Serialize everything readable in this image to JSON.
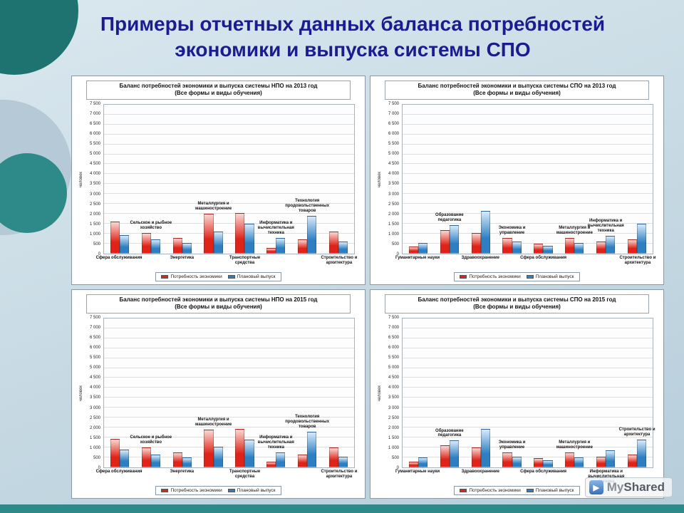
{
  "slide": {
    "title_line1": "Примеры отчетных данных баланса потребностей",
    "title_line2": "экономики и выпуска системы СПО",
    "title_color": "#1c1c8e",
    "accent_teal": "#2d8a88"
  },
  "watermark": {
    "part1": "My",
    "part2": "Shared"
  },
  "chart_data": [
    {
      "type": "bar",
      "title": "Баланс потребностей экономики и выпуска системы НПО на 2013 год",
      "subtitle": "(Все формы и виды обучения)",
      "ylabel": "человек",
      "ylim": [
        0,
        7500
      ],
      "ytick_step": 500,
      "grid": true,
      "legend_position": "bottom",
      "categories": [
        "Сфера обслуживания",
        "Сельское и рыбное хозяйство",
        "Энергетика",
        "Металлургия и машиностроение",
        "Транспортные средства",
        "Информатика и вычислительная техника",
        "Технология продовольственных товаров",
        "Строительство и архитектура"
      ],
      "label_position": [
        "axis",
        "inplot",
        "axis",
        "inplot",
        "axis",
        "inplot",
        "inplot",
        "axis"
      ],
      "series": [
        {
          "name": "Потребность экономики",
          "color": "#df2318",
          "color_light": "#fbd7d2",
          "values": [
            1600,
            1050,
            800,
            2000,
            2050,
            300,
            700,
            1100
          ]
        },
        {
          "name": "Плановый выпуск",
          "color": "#2e7fc2",
          "color_light": "#d6eafb",
          "values": [
            950,
            700,
            550,
            1100,
            1500,
            800,
            1900,
            600
          ]
        }
      ]
    },
    {
      "type": "bar",
      "title": "Баланс потребностей экономики и выпуска системы СПО на 2013 год",
      "subtitle": "(Все формы и виды обучения)",
      "ylabel": "человек",
      "ylim": [
        0,
        7500
      ],
      "ytick_step": 500,
      "grid": true,
      "legend_position": "bottom",
      "categories": [
        "Гуманитарные науки",
        "Образование педагогика",
        "Здравоохранение",
        "Экономика и управление",
        "Сфера обслуживания",
        "Металлургия и машиностроение",
        "Информатика и вычислительная техника",
        "Строительство и архитектура"
      ],
      "label_position": [
        "axis",
        "inplot",
        "axis",
        "inplot",
        "axis",
        "inplot",
        "inplot",
        "axis"
      ],
      "series": [
        {
          "name": "Потребность экономики",
          "color": "#df2318",
          "color_light": "#fbd7d2",
          "values": [
            350,
            1200,
            1050,
            800,
            500,
            800,
            600,
            700
          ]
        },
        {
          "name": "Плановый выпуск",
          "color": "#2e7fc2",
          "color_light": "#d6eafb",
          "values": [
            550,
            1450,
            2150,
            600,
            400,
            550,
            900,
            1500
          ]
        }
      ]
    },
    {
      "type": "bar",
      "title": "Баланс потребностей экономики и выпуска системы НПО на 2015 год",
      "subtitle": "(Все формы и виды обучения)",
      "ylabel": "человек",
      "ylim": [
        0,
        7500
      ],
      "ytick_step": 500,
      "grid": true,
      "legend_position": "bottom",
      "categories": [
        "Сфера обслуживания",
        "Сельское и рыбное хозяйство",
        "Энергетика",
        "Металлургия и машиностроение",
        "Транспортные средства",
        "Информатика и вычислительная техника",
        "Технология продовольственных товаров",
        "Строительство и архитектура"
      ],
      "label_position": [
        "axis",
        "inplot",
        "axis",
        "inplot",
        "axis",
        "inplot",
        "inplot",
        "axis"
      ],
      "series": [
        {
          "name": "Потребность экономики",
          "color": "#df2318",
          "color_light": "#fbd7d2",
          "values": [
            1450,
            1000,
            750,
            1900,
            1950,
            300,
            650,
            1000
          ]
        },
        {
          "name": "Плановый выпуск",
          "color": "#2e7fc2",
          "color_light": "#d6eafb",
          "values": [
            900,
            650,
            500,
            1050,
            1400,
            750,
            1800,
            550
          ]
        }
      ]
    },
    {
      "type": "bar",
      "title": "Баланс потребностей экономики и выпуска системы СПО на 2015 год",
      "subtitle": "(Все формы и виды обучения)",
      "ylabel": "человек",
      "ylim": [
        0,
        7500
      ],
      "ytick_step": 500,
      "grid": true,
      "legend_position": "bottom",
      "categories": [
        "Гуманитарные науки",
        "Образование педагогика",
        "Здравоохранение",
        "Экономика и управление",
        "Сфера обслуживания",
        "Металлургия и машиностроение",
        "Информатика и вычислительная техника",
        "Строительство и архитектура"
      ],
      "label_position": [
        "axis",
        "inplot",
        "axis",
        "inplot",
        "axis",
        "inplot",
        "axis",
        "inplot"
      ],
      "series": [
        {
          "name": "Потребность экономики",
          "color": "#df2318",
          "color_light": "#fbd7d2",
          "values": [
            300,
            1100,
            1000,
            750,
            450,
            750,
            550,
            650
          ]
        },
        {
          "name": "Плановый выпуск",
          "color": "#2e7fc2",
          "color_light": "#d6eafb",
          "values": [
            500,
            1350,
            1950,
            550,
            350,
            500,
            850,
            1400
          ]
        }
      ]
    }
  ]
}
